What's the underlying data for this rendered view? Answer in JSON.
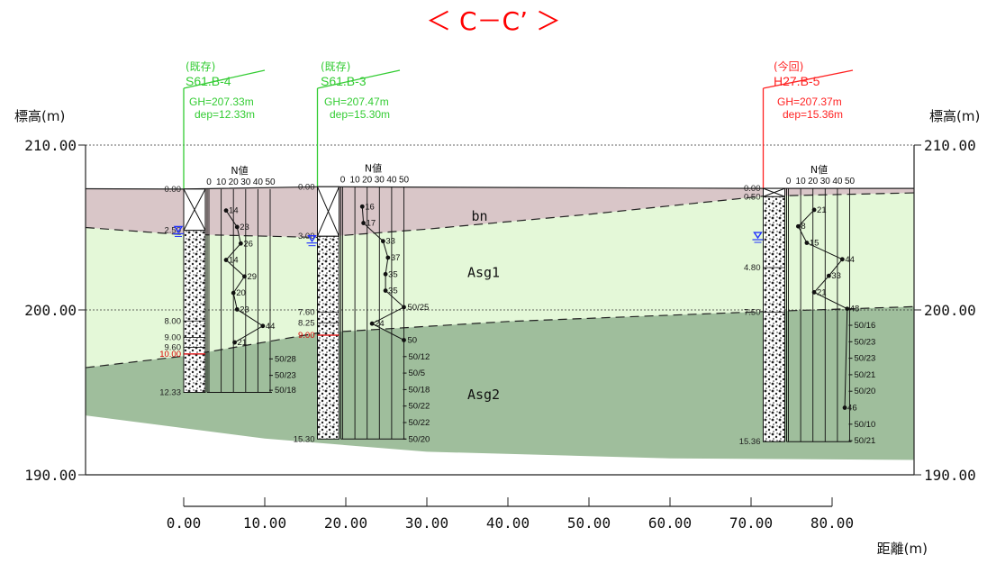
{
  "title": "＜ C－C’ ＞",
  "axis": {
    "elev_label": "標高(m)",
    "dist_label": "距離(m)",
    "elev_ticks": [
      "210.00",
      "200.00",
      "190.00"
    ],
    "dist_ticks": [
      "0.00",
      "10.00",
      "20.00",
      "30.00",
      "40.00",
      "50.00",
      "60.00",
      "70.00",
      "80.00"
    ],
    "elev_range": [
      190,
      210
    ],
    "dist_range": [
      0,
      80
    ]
  },
  "layers": [
    {
      "name": "bn",
      "color": "#d9c6c8"
    },
    {
      "name": "Asg1",
      "color": "#e4f8d8"
    },
    {
      "name": "Asg2",
      "color": "#9fbe9c"
    }
  ],
  "colors": {
    "existing": "#33cc33",
    "current": "#ff2222",
    "water": "#2233ff",
    "boundary_depth": "#dd0000"
  },
  "boreholes": [
    {
      "status": "(既存)",
      "name": "S61.B-4",
      "gh": "GH=207.33m",
      "dep": "dep=12.33m",
      "x": 0,
      "ground": 207.33,
      "total_depth": 12.33,
      "water_depth": 2.6,
      "n_header": "N値",
      "n_scale": [
        "0",
        "10",
        "20",
        "30",
        "40",
        "50"
      ],
      "depth_labels": [
        {
          "text": "0.00",
          "depth": 0
        },
        {
          "text": "2.50",
          "depth": 2.5
        },
        {
          "text": "8.00",
          "depth": 8.0
        },
        {
          "text": "9.00",
          "depth": 9.0
        },
        {
          "text": "9.60",
          "depth": 9.6
        },
        {
          "text": "10.00",
          "depth": 10.0,
          "red": true
        },
        {
          "text": "12.33",
          "depth": 12.33
        }
      ],
      "n_points": [
        {
          "depth": 1.3,
          "n": 14,
          "label": "14"
        },
        {
          "depth": 2.3,
          "n": 23,
          "label": "23"
        },
        {
          "depth": 3.3,
          "n": 26,
          "label": "26"
        },
        {
          "depth": 4.3,
          "n": 14,
          "label": "14"
        },
        {
          "depth": 5.3,
          "n": 29,
          "label": "29"
        },
        {
          "depth": 6.3,
          "n": 20,
          "label": "20"
        },
        {
          "depth": 7.3,
          "n": 23,
          "label": "23"
        },
        {
          "depth": 8.3,
          "n": 44,
          "label": "44"
        },
        {
          "depth": 9.3,
          "n": 21,
          "label": "21"
        }
      ],
      "refusals": [
        {
          "depth": 10.3,
          "label": "50/28"
        },
        {
          "depth": 11.3,
          "label": "50/23"
        },
        {
          "depth": 12.2,
          "label": "50/18"
        }
      ]
    },
    {
      "status": "(既存)",
      "name": "S61.B-3",
      "gh": "GH=207.47m",
      "dep": "dep=15.30m",
      "x": 16.5,
      "ground": 207.47,
      "total_depth": 15.3,
      "water_depth": 3.3,
      "n_header": "N値",
      "n_scale": [
        "0",
        "10",
        "20",
        "30",
        "40",
        "50"
      ],
      "depth_labels": [
        {
          "text": "0.00",
          "depth": 0
        },
        {
          "text": "3.00",
          "depth": 3.0
        },
        {
          "text": "7.60",
          "depth": 7.6
        },
        {
          "text": "8.25",
          "depth": 8.25
        },
        {
          "text": "9.00",
          "depth": 9.0,
          "red": true
        },
        {
          "text": "15.30",
          "depth": 15.3
        }
      ],
      "n_points": [
        {
          "depth": 1.2,
          "n": 16,
          "label": "16"
        },
        {
          "depth": 2.2,
          "n": 17,
          "label": "17"
        },
        {
          "depth": 3.3,
          "n": 33,
          "label": "33"
        },
        {
          "depth": 4.3,
          "n": 37,
          "label": "37"
        },
        {
          "depth": 5.3,
          "n": 35,
          "label": "35"
        },
        {
          "depth": 6.3,
          "n": 35,
          "label": "35"
        },
        {
          "depth": 7.3,
          "n": 50,
          "label": "50/25"
        },
        {
          "depth": 8.3,
          "n": 24,
          "label": "24"
        },
        {
          "depth": 9.3,
          "n": 50,
          "label": "50"
        }
      ],
      "refusals": [
        {
          "depth": 10.3,
          "label": "50/12"
        },
        {
          "depth": 11.3,
          "label": "50/5"
        },
        {
          "depth": 12.3,
          "label": "50/18"
        },
        {
          "depth": 13.3,
          "label": "50/22"
        },
        {
          "depth": 14.3,
          "label": "50/22"
        },
        {
          "depth": 15.3,
          "label": "50/20"
        }
      ]
    },
    {
      "status": "(今回)",
      "name": "H27.B-5",
      "gh": "GH=207.37m",
      "dep": "dep=15.36m",
      "x": 71.5,
      "ground": 207.37,
      "total_depth": 15.36,
      "water_depth": 3.0,
      "n_header": "N値",
      "n_scale": [
        "0",
        "10",
        "20",
        "30",
        "40",
        "50"
      ],
      "depth_labels": [
        {
          "text": "0.00",
          "depth": 0
        },
        {
          "text": "0.50",
          "depth": 0.5
        },
        {
          "text": "4.80",
          "depth": 4.8
        },
        {
          "text": "7.50",
          "depth": 7.5
        },
        {
          "text": "15.36",
          "depth": 15.36
        }
      ],
      "n_points": [
        {
          "depth": 1.3,
          "n": 21,
          "label": "21"
        },
        {
          "depth": 2.3,
          "n": 8,
          "label": "8"
        },
        {
          "depth": 3.3,
          "n": 15,
          "label": "15"
        },
        {
          "depth": 4.3,
          "n": 44,
          "label": "44"
        },
        {
          "depth": 5.3,
          "n": 33,
          "label": "33"
        },
        {
          "depth": 6.3,
          "n": 21,
          "label": "21"
        },
        {
          "depth": 7.3,
          "n": 48,
          "label": "48"
        }
      ],
      "refusals": [
        {
          "depth": 8.3,
          "label": "50/16"
        },
        {
          "depth": 9.3,
          "label": "50/23"
        },
        {
          "depth": 10.3,
          "label": "50/23"
        },
        {
          "depth": 11.3,
          "label": "50/21"
        },
        {
          "depth": 12.3,
          "label": "50/20"
        }
      ],
      "late_points": [
        {
          "depth": 13.3,
          "n": 46,
          "label": "46"
        }
      ],
      "late_refusals": [
        {
          "depth": 14.3,
          "label": "50/10"
        },
        {
          "depth": 15.3,
          "label": "50/21"
        }
      ]
    }
  ]
}
